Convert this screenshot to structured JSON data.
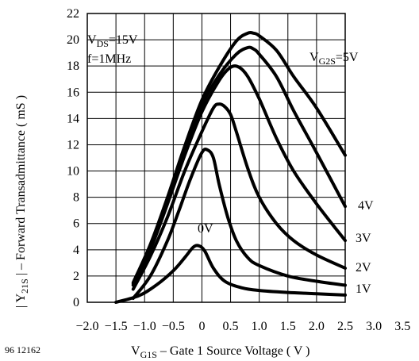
{
  "figure_id": "96 12162",
  "chart_data": {
    "type": "line",
    "xlabel_parts": [
      "V",
      "G1S",
      " – Gate 1 Source Voltage ( V )"
    ],
    "ylabel_parts": [
      "| Y",
      "21S",
      " | – Forward Transadmittance ( mS )"
    ],
    "xlim": [
      -2.0,
      2.5
    ],
    "ylim": [
      0,
      22
    ],
    "xticks": [
      "-2.0",
      "-1.5",
      "-1.0",
      "-0.5",
      "0",
      "0.5",
      "1.0",
      "1.5",
      "2.0",
      "2.5",
      "3.0",
      "3.5"
    ],
    "xtick_values": [
      -2.0,
      -1.5,
      -1.0,
      -0.5,
      0,
      0.5,
      1.0,
      1.5,
      2.0,
      2.5,
      3.0,
      3.5
    ],
    "yticks": [
      "0",
      "2",
      "4",
      "6",
      "8",
      "10",
      "12",
      "14",
      "16",
      "18",
      "20",
      "22"
    ],
    "ytick_values": [
      0,
      2,
      4,
      6,
      8,
      10,
      12,
      14,
      16,
      18,
      20,
      22
    ],
    "grid": true,
    "conditions": [
      {
        "parts": [
          "V",
          "DS",
          "=15V"
        ]
      },
      {
        "parts": [
          "f=1MHz"
        ]
      }
    ],
    "series": [
      {
        "name": "0V",
        "x": [
          -1.5,
          -1.1,
          -0.8,
          -0.5,
          -0.3,
          -0.15,
          -0.05,
          0.05,
          0.2,
          0.4,
          0.7,
          1.0,
          1.5,
          2.0,
          2.5
        ],
        "y": [
          0,
          0.5,
          1.3,
          2.4,
          3.4,
          4.2,
          4.3,
          3.9,
          2.6,
          1.6,
          1.1,
          0.9,
          0.75,
          0.65,
          0.55
        ]
      },
      {
        "name": "1V",
        "x": [
          -1.2,
          -0.9,
          -0.6,
          -0.4,
          -0.2,
          0,
          0.1,
          0.2,
          0.3,
          0.45,
          0.6,
          0.8,
          1.0,
          1.5,
          2.0,
          2.5
        ],
        "y": [
          0.3,
          2.0,
          4.7,
          7.0,
          9.4,
          11.4,
          11.6,
          11.0,
          9.0,
          6.5,
          4.7,
          3.4,
          2.8,
          2.0,
          1.6,
          1.3
        ]
      },
      {
        "name": "2V",
        "x": [
          -1.2,
          -0.9,
          -0.6,
          -0.3,
          0,
          0.2,
          0.3,
          0.4,
          0.5,
          0.6,
          0.8,
          1.0,
          1.3,
          1.6,
          2.0,
          2.5
        ],
        "y": [
          1.0,
          3.5,
          6.5,
          10.0,
          13.0,
          14.8,
          15.1,
          14.9,
          14.3,
          13.0,
          10.2,
          8.0,
          6.0,
          4.7,
          3.6,
          2.6
        ]
      },
      {
        "name": "3V",
        "x": [
          -1.2,
          -0.9,
          -0.6,
          -0.3,
          0,
          0.3,
          0.5,
          0.65,
          0.8,
          1.0,
          1.3,
          1.6,
          2.0,
          2.5
        ],
        "y": [
          1.3,
          4.0,
          7.5,
          11.2,
          14.5,
          16.9,
          17.9,
          17.9,
          17.2,
          15.5,
          12.5,
          10.0,
          7.5,
          4.7
        ]
      },
      {
        "name": "4V",
        "x": [
          -1.2,
          -0.9,
          -0.6,
          -0.3,
          0,
          0.3,
          0.6,
          0.8,
          0.9,
          1.0,
          1.3,
          1.6,
          2.0,
          2.5
        ],
        "y": [
          1.4,
          4.2,
          7.8,
          11.6,
          15.0,
          17.3,
          18.9,
          19.4,
          19.3,
          18.9,
          17.2,
          14.6,
          11.4,
          7.3
        ]
      },
      {
        "name": "5V",
        "x": [
          -1.2,
          -0.9,
          -0.6,
          -0.3,
          0,
          0.3,
          0.6,
          0.8,
          0.9,
          1.0,
          1.3,
          1.6,
          2.0,
          2.5
        ],
        "y": [
          1.5,
          4.4,
          8.0,
          11.9,
          15.4,
          17.9,
          19.9,
          20.5,
          20.5,
          20.3,
          19.2,
          17.2,
          14.8,
          11.2
        ]
      }
    ],
    "curve_labels": [
      {
        "series": "5V",
        "parts": [
          "V",
          "G2S",
          "=5V"
        ]
      },
      {
        "series": "4V",
        "parts": [
          "4V"
        ]
      },
      {
        "series": "3V",
        "parts": [
          "3V"
        ]
      },
      {
        "series": "2V",
        "parts": [
          "2V"
        ]
      },
      {
        "series": "1V",
        "parts": [
          "1V"
        ]
      },
      {
        "series": "0V",
        "parts": [
          "0V"
        ]
      }
    ]
  }
}
